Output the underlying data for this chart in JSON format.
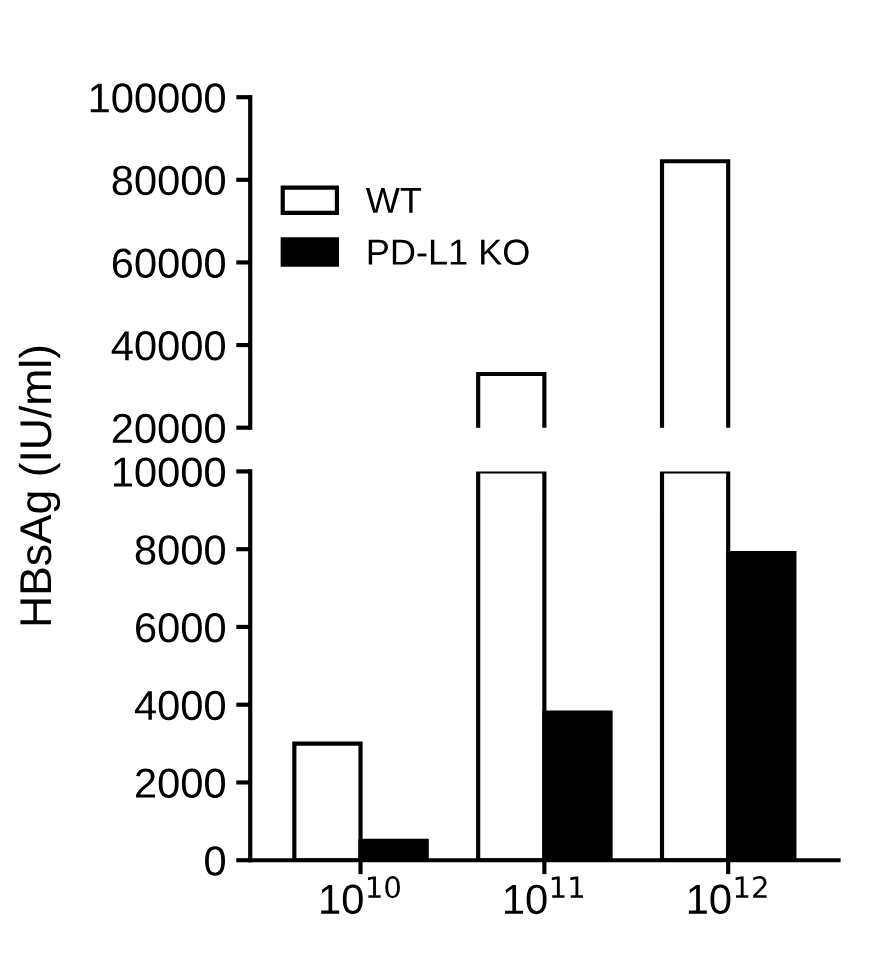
{
  "chart_data": [
    {
      "type": "bar",
      "ylabel": "HBsAg (IU/ml)",
      "categories": [
        null,
        null,
        null
      ],
      "ylim": [
        20000,
        100000
      ],
      "yticks": [
        20000,
        40000,
        60000,
        80000,
        100000
      ],
      "tick_labels": "y",
      "legend": "left",
      "grid": false,
      "series": [
        {
          "name": "WT",
          "color": "#ffffff",
          "values": [
            null,
            33000,
            84500
          ]
        },
        {
          "name": "PD-L1 KO",
          "color": "#000000",
          "values": [
            null,
            null,
            null
          ]
        }
      ]
    },
    {
      "type": "bar",
      "categories": [
        "10$^{10}$",
        "10$^{11}$",
        "10$^{12}$"
      ],
      "ylim": [
        0,
        10000
      ],
      "yticks": [
        0,
        2000,
        4000,
        6000,
        8000,
        10000
      ],
      "grid": false,
      "series": [
        {
          "color": "#ffffff",
          "values": [
            3000,
            10000,
            10000
          ]
        },
        {
          "color": "#000000",
          "values": [
            500,
            3800,
            7900
          ]
        }
      ]
    }
  ]
}
